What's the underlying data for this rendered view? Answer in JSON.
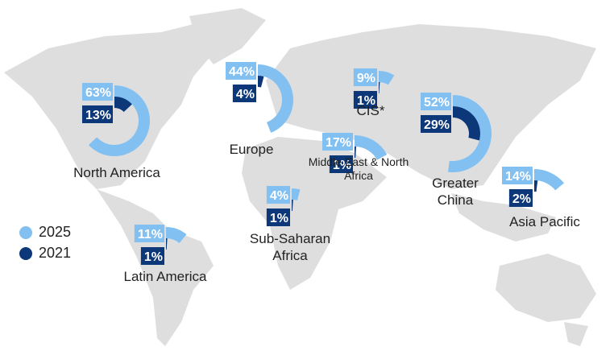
{
  "chart_data": {
    "type": "radial_bar",
    "categories": [
      "North America",
      "Europe",
      "CIS*",
      "Middle East & North Africa",
      "Sub-Saharan Africa",
      "Greater China",
      "Asia Pacific",
      "Latin America"
    ],
    "series": [
      {
        "name": "2025",
        "color": "#82c0f2",
        "values": [
          63,
          44,
          9,
          17,
          4,
          52,
          14,
          11
        ],
        "value_labels": [
          "63%",
          "44%",
          "9%",
          "17%",
          "4%",
          "52%",
          "14%",
          "11%"
        ]
      },
      {
        "name": "2021",
        "color": "#0c3778",
        "values": [
          13,
          4,
          1,
          1,
          1,
          29,
          2,
          1
        ],
        "value_labels": [
          "13%",
          "4%",
          "1%",
          "1%",
          "1%",
          "29%",
          "2%",
          "1%"
        ]
      }
    ]
  }
}
